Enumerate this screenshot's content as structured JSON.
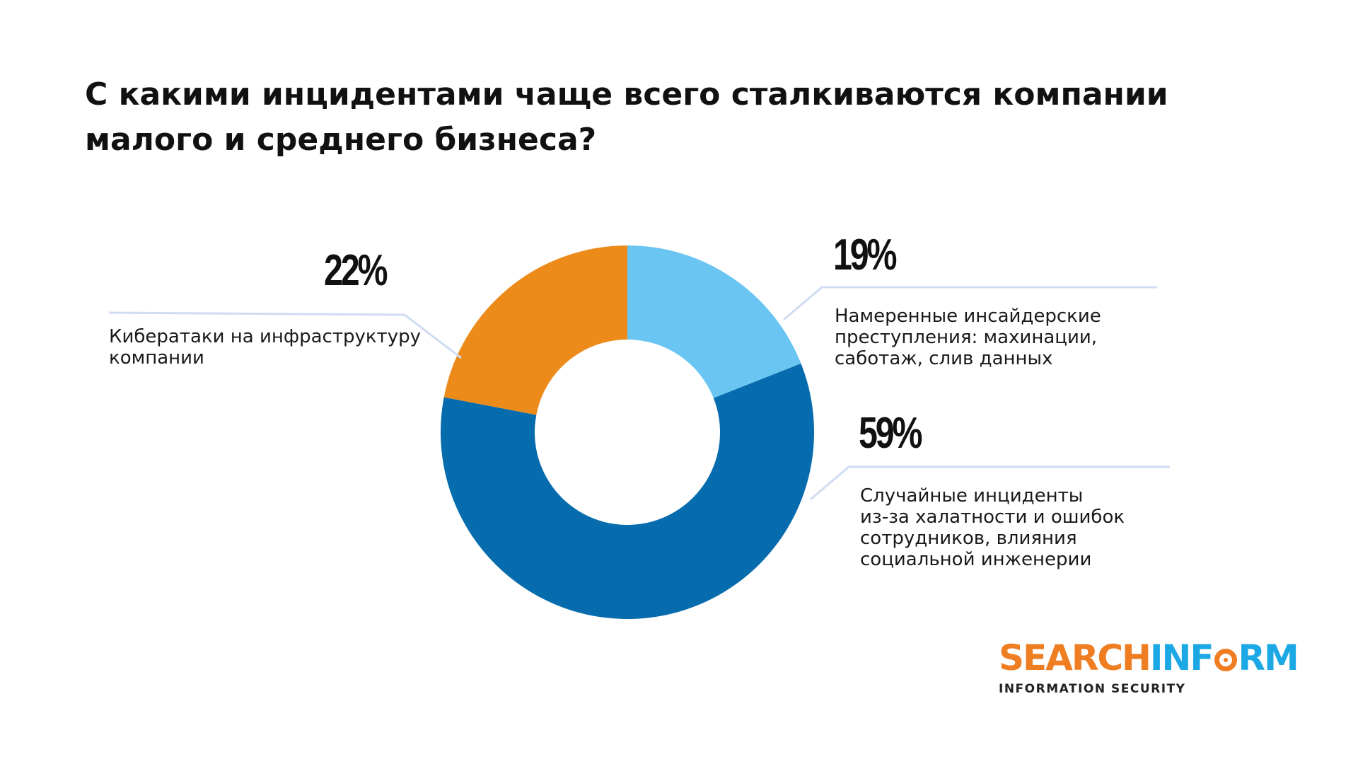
{
  "chart_data": {
    "type": "pie",
    "variant": "donut",
    "title": "С какими инцидентами чаще всего сталкиваются компании малого и среднего бизнеса?",
    "title_lines": [
      "С какими инцидентами чаще всего сталкиваются компании",
      "малого и среднего бизнеса?"
    ],
    "unit": "%",
    "slices": [
      {
        "value": 19,
        "label": "19%",
        "description_lines": [
          "Намеренные инсайдерские",
          "преступления: махинации,",
          "саботаж, слив данных"
        ],
        "color": "#6ac5f3"
      },
      {
        "value": 59,
        "label": "59%",
        "description_lines": [
          "Случайные инциденты",
          "из-за халатности и ошибок",
          "сотрудников, влияния",
          "социальной инженерии"
        ],
        "color": "#066cae"
      },
      {
        "value": 22,
        "label": "22%",
        "description_lines": [
          "Кибератаки на инфраструктуру",
          "компании"
        ],
        "color": "#ec8b1a"
      }
    ],
    "start_angle_deg": 0,
    "direction": "clockwise",
    "leader_line_color": "#cfdcf2"
  },
  "logo": {
    "word_part1": "SEARCH",
    "word_part2_pre": "INF",
    "word_part2_post": "RM",
    "tagline": "INFORMATION SECURITY",
    "colors": {
      "orange": "#ef7d22",
      "blue": "#1ba8e4"
    }
  }
}
